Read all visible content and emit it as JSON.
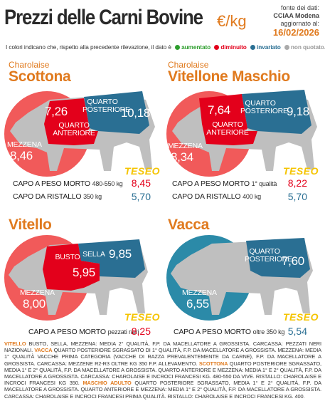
{
  "header": {
    "title": "Prezzi delle Carni Bovine",
    "unit": "€/kg",
    "source_line1": "fonte dei dati:",
    "source_line2": "CCIAA Modena",
    "source_line3": "aggiornato al:",
    "date": "16/02/2026"
  },
  "legend": {
    "intro": "I colori indicano che, rispetto alla precedente rilevazione, il dato è",
    "up": "aumentato",
    "down": "diminuito",
    "same": "invariato",
    "none": "non quotato.",
    "up_color": "#2e9e2e",
    "down_color": "#e3001b",
    "same_color": "#2a6f93",
    "none_color": "#aaaaaa"
  },
  "panels": {
    "scottona": {
      "breed": "Charolaise",
      "title": "Scottona",
      "cut_upper_label": "QUARTO POSTERIORE",
      "cut_upper_value": "10,18",
      "cut_front_label": "QUARTO ANTERIORE",
      "cut_front_value": "7,26",
      "cut_belly_label": "MEZZENA",
      "cut_belly_value": "8,46",
      "logo": "TESEO",
      "row1_label": "CAPO A PESO MORTO",
      "row1_sub": "480-550 kg",
      "row1_value": "8,45",
      "row2_label": "CAPO DA RISTALLO",
      "row2_sub": "350 kg",
      "row2_value": "5,70"
    },
    "vitellone": {
      "breed": "Charolaise",
      "title": "Vitellone Maschio",
      "cut_upper_label": "QUARTO POSTERIORE",
      "cut_upper_value": "9,18",
      "cut_front_label": "QUARTO ANTERIORE",
      "cut_front_value": "7,64",
      "cut_belly_label": "MEZZENA",
      "cut_belly_value": "8,34",
      "logo": "TESEO",
      "row1_label": "CAPO A PESO MORTO",
      "row1_sub": "1° qualità",
      "row1_value": "8,22",
      "row2_label": "CAPO DA RISTALLO",
      "row2_sub": "400 kg",
      "row2_value": "5,70"
    },
    "vitello": {
      "title": "Vitello",
      "cut_upper_label": "SELLA",
      "cut_upper_value": "9,85",
      "cut_front_label": "BUSTO",
      "cut_front_value": "5,95",
      "cut_belly_label": "MEZZENA",
      "cut_belly_value": "8,00",
      "logo": "TESEO",
      "row1_label": "CAPO A PESO MORTO",
      "row1_sub": "pezzati neri",
      "row1_value": "8,25"
    },
    "vacca": {
      "title": "Vacca",
      "cut_upper_label": "QUARTO POSTERIORE",
      "cut_upper_value": "7,60",
      "cut_belly_label": "MEZZENA",
      "cut_belly_value": "6,55",
      "logo": "TESEO",
      "row1_label": "CAPO A PESO MORTO",
      "row1_sub": "oltre 350 kg",
      "row1_value": "5,54"
    }
  },
  "footer": {
    "p1_k": "VITELLO",
    "p1": "BUSTO, SELLA, MEZZENA: MEDIA 2° QUALITÀ, F.P. DA MACELLATORE A GROSSISTA. CARCASSA: PEZZATI NERI NAZIONALI.",
    "p2_k": "VACCA",
    "p2": "QUARTO POSTERIORE SGRASSATO DI 1° QUALITÀ, F.P. DA MACELLATORE A GROSSISTA. MEZZENA: MEDIA 1° QUALITÀ VACCHE PRIMA CATEGORIA (VACCHE DI RAZZA PREVALENTEMENTE DA CARNE), F.P. DA MACELLATORE A GROSSISTA. CARCASSA: MEZZENE R2-R3 OLTRE KG 350 F.P. ALLEVAMENTO.",
    "p3_k": "SCOTTONA",
    "p3": "QUARTO POSTERIORE SGRASSATO, MEDIA 1° E 2° QUALITÀ, F.P. DA MACELLATORE A GROSSISTA. QUARTO ANTERIORE E MEZZENA: MEDIA 1° E 2° QUALITÀ, F.P. DA MACELLATORE A GROSSISTA. CARCASSA: CHAROLAISE E INCROCI FRANCESI KG. 480-550 DA VIVE. RISTALLO: CHAROLAISE E INCROCI FRANCESI KG 350.",
    "p4_k": "MASCHIO ADULTO",
    "p4": "QUARTO POSTERIORE SGRASSATO, MEDIA 1° E 2° QUALITÀ, F.P. DA MACELLATORE A GROSSISTA. QUARTO ANTERIORE E MEZZENA: MEDIA 1° E 2° QUALITÀ, F.P. DA MACELLATORE A GROSSISTA. CARCASSA: CHAROLAISE E INCROCI FRANCESI PRIMA QUALITÀ. RISTALLO: CHAROLAISE E INCROCI FRANCESI KG. 400."
  }
}
